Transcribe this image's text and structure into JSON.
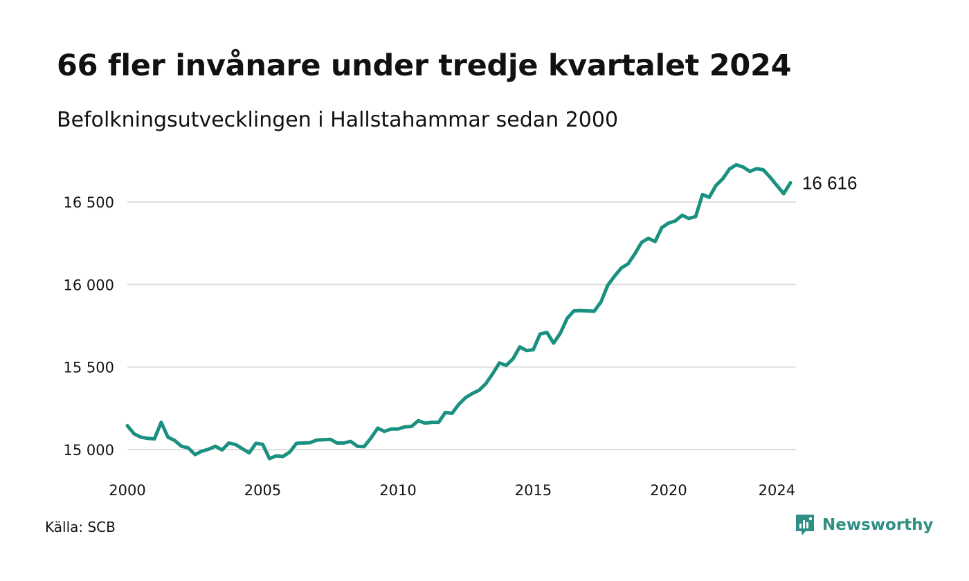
{
  "header": {
    "title": "66 fler invånare under tredje kvartalet 2024",
    "subtitle": "Befolkningsutvecklingen i Hallstahammar sedan 2000"
  },
  "footer": {
    "source": "Källa: SCB",
    "brand": "Newsworthy",
    "brand_icon": "newsworthy-logo-icon"
  },
  "colors": {
    "line": "#1a9080",
    "grid": "#dddddd",
    "brand": "#2f8f84"
  },
  "chart_data": {
    "type": "line",
    "title": "66 fler invånare under tredje kvartalet 2024",
    "subtitle": "Befolkningsutvecklingen i Hallstahammar sedan 2000",
    "x_ticks": [
      2000,
      2005,
      2010,
      2015,
      2020,
      2024
    ],
    "y_ticks": [
      15000,
      15500,
      16000,
      16500
    ],
    "y_tick_labels": [
      "15 000",
      "15 500",
      "16 000",
      "16 500"
    ],
    "xlim": [
      2000,
      2024.5
    ],
    "ylim": [
      14900,
      16800
    ],
    "grid": true,
    "end_label": "16 616",
    "series": [
      {
        "x": [
          2000.0,
          2000.25,
          2000.5,
          2000.75,
          2001.0,
          2001.25,
          2001.5,
          2001.75,
          2002.0,
          2002.25,
          2002.5,
          2002.75,
          2003.0,
          2003.25,
          2003.5,
          2003.75,
          2004.0,
          2004.25,
          2004.5,
          2004.75,
          2005.0,
          2005.25,
          2005.5,
          2005.75,
          2006.0,
          2006.25,
          2006.5,
          2006.75,
          2007.0,
          2007.25,
          2007.5,
          2007.75,
          2008.0,
          2008.25,
          2008.5,
          2008.75,
          2009.0,
          2009.25,
          2009.5,
          2009.75,
          2010.0,
          2010.25,
          2010.5,
          2010.75,
          2011.0,
          2011.25,
          2011.5,
          2011.75,
          2012.0,
          2012.25,
          2012.5,
          2012.75,
          2013.0,
          2013.25,
          2013.5,
          2013.75,
          2014.0,
          2014.25,
          2014.5,
          2014.75,
          2015.0,
          2015.25,
          2015.5,
          2015.75,
          2016.0,
          2016.25,
          2016.5,
          2016.75,
          2017.0,
          2017.25,
          2017.5,
          2017.75,
          2018.0,
          2018.25,
          2018.5,
          2018.75,
          2019.0,
          2019.25,
          2019.5,
          2019.75,
          2020.0,
          2020.25,
          2020.5,
          2020.75,
          2021.0,
          2021.25,
          2021.5,
          2021.75,
          2022.0,
          2022.25,
          2022.5,
          2022.75,
          2023.0,
          2023.25,
          2023.5,
          2023.75,
          2024.0,
          2024.25,
          2024.5
        ],
        "values": [
          15145,
          15095,
          15075,
          15068,
          15065,
          15165,
          15075,
          15055,
          15020,
          15010,
          14970,
          14990,
          15002,
          15020,
          14998,
          15040,
          15030,
          15005,
          14980,
          15038,
          15032,
          14945,
          14962,
          14958,
          14985,
          15038,
          15040,
          15042,
          15058,
          15060,
          15062,
          15040,
          15040,
          15050,
          15020,
          15018,
          15070,
          15130,
          15110,
          15125,
          15125,
          15138,
          15140,
          15175,
          15160,
          15165,
          15165,
          15225,
          15220,
          15275,
          15315,
          15340,
          15360,
          15400,
          15460,
          15525,
          15510,
          15550,
          15622,
          15600,
          15605,
          15700,
          15710,
          15645,
          15705,
          15795,
          15840,
          15842,
          15840,
          15838,
          15895,
          15995,
          16050,
          16100,
          16125,
          16185,
          16255,
          16280,
          16260,
          16345,
          16372,
          16385,
          16420,
          16400,
          16412,
          16545,
          16528,
          16600,
          16640,
          16700,
          16725,
          16712,
          16685,
          16702,
          16695,
          16650,
          16600,
          16550,
          16616
        ]
      }
    ]
  }
}
